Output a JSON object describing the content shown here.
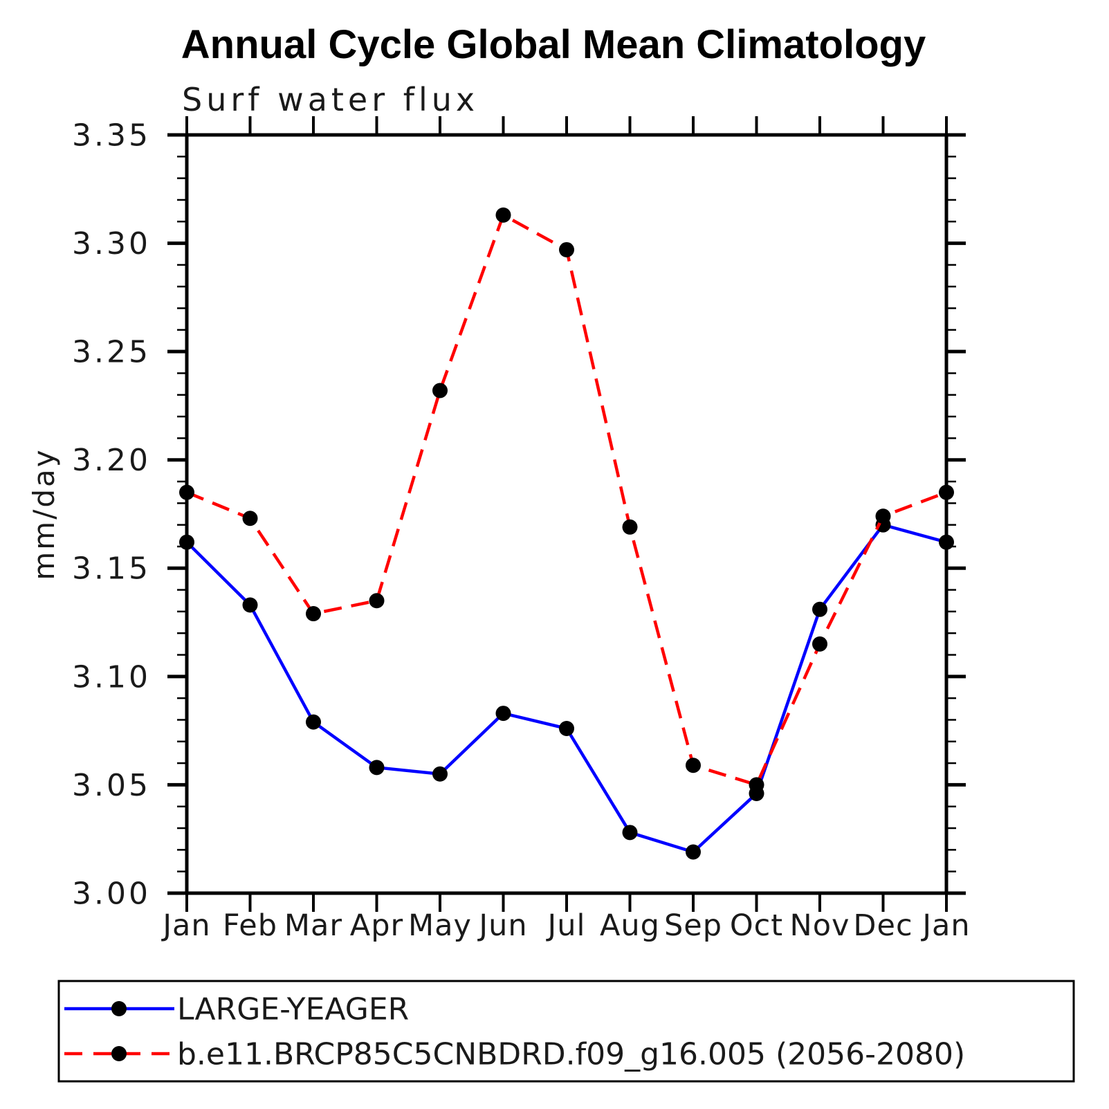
{
  "title": "Annual Cycle Global Mean Climatology",
  "subtitle": "Surf water flux",
  "chart_data": {
    "type": "line",
    "title": "Annual Cycle Global Mean Climatology",
    "subtitle": "Surf water flux",
    "xlabel": "",
    "ylabel": "mm/day",
    "categories": [
      "Jan",
      "Feb",
      "Mar",
      "Apr",
      "May",
      "Jun",
      "Jul",
      "Aug",
      "Sep",
      "Oct",
      "Nov",
      "Dec",
      "Jan"
    ],
    "ylim": [
      3.0,
      3.35
    ],
    "ytick_major_step": 0.05,
    "ytick_minor_step": 0.01,
    "ytick_labels": [
      "3.00",
      "3.05",
      "3.10",
      "3.15",
      "3.20",
      "3.25",
      "3.30",
      "3.35"
    ],
    "grid": false,
    "legend_position": "bottom",
    "background_color": "#ffffff",
    "axis_color": "#000000",
    "marker_shape": "circle",
    "series": [
      {
        "name": "LARGE-YEAGER",
        "color": "#0000ff",
        "line_style": "solid",
        "marker_color": "#000000",
        "values": [
          3.162,
          3.133,
          3.079,
          3.058,
          3.055,
          3.083,
          3.076,
          3.028,
          3.019,
          3.046,
          3.131,
          3.17,
          3.162
        ]
      },
      {
        "name": "b.e11.BRCP85C5CNBDRD.f09_g16.005 (2056-2080)",
        "color": "#ff0000",
        "line_style": "dashed",
        "marker_color": "#000000",
        "values": [
          3.185,
          3.173,
          3.129,
          3.135,
          3.232,
          3.313,
          3.297,
          3.169,
          3.059,
          3.05,
          3.115,
          3.174,
          3.185
        ]
      }
    ]
  }
}
